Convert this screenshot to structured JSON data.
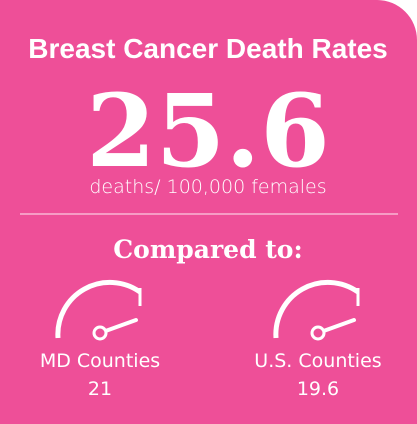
{
  "title": "Breast Cancer Death Rates",
  "value": 25.6,
  "unit": "deaths/ 100,000 females",
  "comparison_heading": "Compared to:",
  "comparisons": [
    {
      "label": "MD Counties",
      "value": 21
    },
    {
      "label": "U.S. Counties",
      "value": 19.6
    }
  ]
}
